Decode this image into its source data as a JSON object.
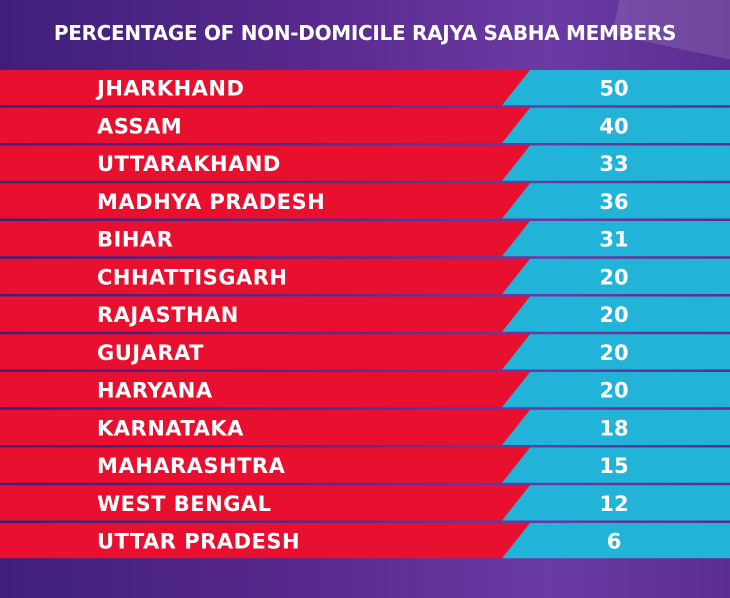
{
  "chart_data": {
    "type": "table",
    "title": "PERCENTAGE OF NON-DOMICILE RAJYA SABHA MEMBERS",
    "categories": [
      "JHARKHAND",
      "ASSAM",
      "UTTARAKHAND",
      "MADHYA PRADESH",
      "BIHAR",
      "CHHATTISGARH",
      "RAJASTHAN",
      "GUJARAT",
      "HARYANA",
      "KARNATAKA",
      "MAHARASHTRA",
      "WEST BENGAL",
      "UTTAR PRADESH"
    ],
    "values": [
      50,
      40,
      33,
      36,
      31,
      20,
      20,
      20,
      20,
      18,
      15,
      12,
      6
    ]
  },
  "colors": {
    "label_band": "#e8102e",
    "value_band": "#22b3d8",
    "background": "#4f2788",
    "text": "#ffffff"
  }
}
